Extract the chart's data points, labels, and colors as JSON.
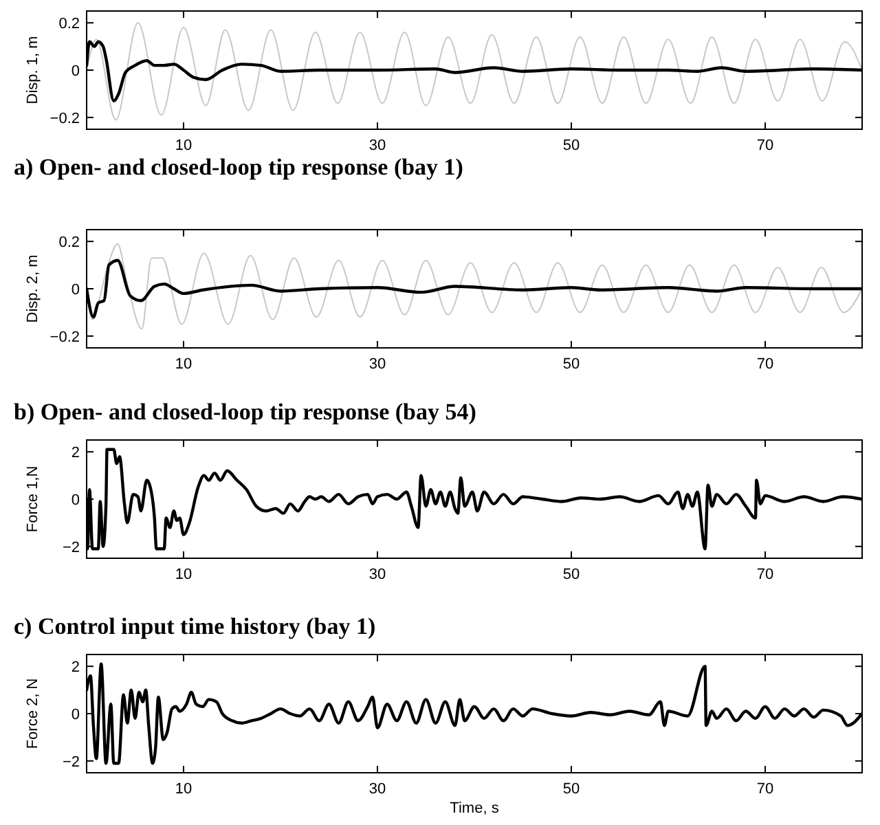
{
  "chart_data": [
    {
      "type": "line",
      "title": "a) Open- and closed-loop tip response (bay 1)",
      "ylabel": "Disp. 1, m",
      "xlim": [
        0,
        80
      ],
      "xticks": [
        10,
        30,
        50,
        70
      ],
      "ylim": [
        -0.25,
        0.25
      ],
      "yticks": [
        -0.2,
        0,
        0.2
      ],
      "series": [
        {
          "color": "#c8c8c8",
          "x": [
            0,
            1,
            3,
            5.3,
            7.7,
            10,
            12.3,
            14.3,
            16.7,
            19,
            21.3,
            23.6,
            25.9,
            28.2,
            30.5,
            32.8,
            35,
            37.3,
            39.6,
            41.8,
            44.1,
            46.4,
            48.6,
            50.9,
            53.2,
            55.4,
            57.7,
            60,
            62.3,
            64.5,
            66.8,
            69,
            71.3,
            73.6,
            75.9,
            78.2,
            80
          ],
          "values": [
            0,
            0.13,
            -0.21,
            0.2,
            -0.19,
            0.18,
            -0.15,
            0.17,
            -0.17,
            0.17,
            -0.17,
            0.16,
            -0.14,
            0.16,
            -0.14,
            0.16,
            -0.15,
            0.14,
            -0.14,
            0.15,
            -0.14,
            0.14,
            -0.14,
            0.14,
            -0.14,
            0.14,
            -0.14,
            0.13,
            -0.14,
            0.14,
            -0.14,
            0.13,
            -0.13,
            0.13,
            -0.13,
            0.12,
            0
          ]
        },
        {
          "color": "#000000",
          "x": [
            0,
            0.3,
            0.8,
            1.2,
            1.7,
            2,
            2.8,
            3.3,
            4,
            5,
            6.2,
            7,
            8,
            9,
            10,
            11,
            12.3,
            14,
            16,
            18,
            20,
            24,
            30,
            36,
            38,
            42,
            45,
            50,
            55,
            60,
            63,
            65.5,
            68,
            75,
            80
          ],
          "values": [
            0.02,
            0.12,
            0.1,
            0.12,
            0.1,
            0.05,
            -0.13,
            -0.1,
            -0.01,
            0.02,
            0.04,
            0.02,
            0.02,
            0.025,
            0,
            -0.03,
            -0.04,
            0,
            0.025,
            0.02,
            -0.005,
            0,
            0,
            0.005,
            -0.01,
            0.01,
            -0.005,
            0.005,
            0,
            0,
            -0.005,
            0.01,
            -0.005,
            0.005,
            0
          ]
        }
      ]
    },
    {
      "type": "line",
      "title": "b) Open- and closed-loop tip response (bay 54)",
      "ylabel": "Disp. 2, m",
      "xlim": [
        0,
        80
      ],
      "xticks": [
        10,
        30,
        50,
        70
      ],
      "ylim": [
        -0.25,
        0.25
      ],
      "yticks": [
        -0.2,
        0,
        0.2
      ],
      "series": [
        {
          "color": "#c8c8c8",
          "x": [
            0,
            0.6,
            1.2,
            2.2,
            3.2,
            4.2,
            5.7,
            6.7,
            7.8,
            9.8,
            12.1,
            14.6,
            16.9,
            19.2,
            21.4,
            23.7,
            26,
            28.2,
            30.5,
            32.8,
            35,
            37.3,
            39.6,
            41.8,
            44.1,
            46.4,
            48.6,
            50.9,
            53.2,
            55.4,
            57.7,
            60,
            62.2,
            64.5,
            66.8,
            69,
            71.3,
            73.6,
            75.8,
            78.1,
            80
          ],
          "values": [
            0,
            -0.13,
            -0.06,
            0.1,
            0.19,
            0.02,
            -0.17,
            0.13,
            0.13,
            -0.15,
            0.15,
            -0.15,
            0.14,
            -0.13,
            0.13,
            -0.12,
            0.12,
            -0.12,
            0.12,
            -0.11,
            0.12,
            -0.11,
            0.11,
            -0.1,
            0.11,
            -0.1,
            0.11,
            -0.1,
            0.1,
            -0.1,
            0.1,
            -0.1,
            0.1,
            -0.1,
            0.1,
            -0.1,
            0.09,
            -0.1,
            0.09,
            -0.1,
            0
          ]
        },
        {
          "color": "#000000",
          "x": [
            0,
            0.7,
            1.2,
            1.8,
            2.3,
            3.2,
            4.5,
            5.6,
            7,
            8,
            9,
            10,
            12,
            17,
            20,
            24,
            30,
            34.5,
            38,
            45,
            50,
            53,
            60,
            65,
            68,
            75,
            80
          ],
          "values": [
            0,
            -0.12,
            -0.06,
            -0.05,
            0.1,
            0.12,
            -0.03,
            -0.05,
            0.01,
            0.02,
            0,
            -0.02,
            -0.005,
            0.015,
            -0.01,
            0,
            0.005,
            -0.015,
            0.01,
            -0.005,
            0.005,
            -0.005,
            0.005,
            -0.01,
            0.005,
            0,
            0
          ]
        }
      ]
    },
    {
      "type": "line",
      "title": "c) Control input time history (bay 1)",
      "ylabel": "Force 1,N",
      "xlim": [
        0,
        80
      ],
      "xticks": [
        10,
        30,
        50,
        70
      ],
      "ylim": [
        -2.5,
        2.5
      ],
      "yticks": [
        -2,
        0,
        2
      ],
      "series": [
        {
          "color": "#000000",
          "x": [
            0,
            0.1,
            0.3,
            0.6,
            1.2,
            1.4,
            1.7,
            2,
            2.1,
            2.8,
            3.1,
            3.4,
            3.9,
            4.2,
            4.8,
            5.3,
            5.6,
            6.2,
            6.5,
            7,
            7.2,
            8,
            8.2,
            8.6,
            9,
            9.3,
            9.6,
            10,
            10.6,
            11.5,
            12.1,
            12.6,
            13.2,
            13.8,
            14.5,
            15.5,
            16.5,
            17.5,
            18.5,
            19.5,
            20.3,
            21,
            21.8,
            22.5,
            23,
            23.6,
            24.2,
            25,
            26,
            27,
            28,
            29,
            29.5,
            30,
            31,
            32,
            33,
            33.5,
            34.2,
            34.5,
            35,
            35.5,
            36,
            36.5,
            37,
            37.5,
            38,
            38.3,
            38.6,
            39,
            39.8,
            40.3,
            41,
            42,
            43,
            44,
            45,
            47,
            49,
            51,
            53,
            55,
            57,
            59,
            60,
            61,
            61.5,
            62,
            62.5,
            63,
            63.8,
            64.1,
            64.5,
            65,
            66,
            67,
            68,
            69,
            69.1,
            69.5,
            70,
            72,
            74,
            76,
            78,
            80
          ],
          "values": [
            0,
            -2.1,
            0.4,
            -2.1,
            -2.1,
            -0.1,
            -2,
            -0.2,
            2.1,
            2.1,
            1.5,
            1.8,
            -0.2,
            -1,
            0.2,
            0.1,
            -0.5,
            0.8,
            0.6,
            -0.8,
            -2.1,
            -2.1,
            -0.8,
            -1.2,
            -0.5,
            -0.9,
            -0.8,
            -1.5,
            -1,
            0.5,
            1,
            0.8,
            1.1,
            0.8,
            1.2,
            0.8,
            0.4,
            -0.3,
            -0.5,
            -0.4,
            -0.6,
            -0.2,
            -0.5,
            -0.1,
            0.1,
            0,
            0.1,
            -0.1,
            0.2,
            -0.2,
            0.1,
            0.2,
            -0.2,
            0.1,
            0.2,
            0,
            0.3,
            -0.3,
            -1.2,
            1,
            -0.3,
            0.4,
            -0.2,
            0.3,
            -0.3,
            0.3,
            -0.4,
            -0.6,
            0.9,
            -0.3,
            0.3,
            -0.5,
            0.3,
            -0.2,
            0.2,
            -0.2,
            0.1,
            0,
            -0.1,
            0.05,
            0,
            0.1,
            -0.1,
            0.15,
            -0.2,
            0.3,
            -0.4,
            0.2,
            -0.3,
            0.3,
            -2.1,
            0.6,
            -0.3,
            0.2,
            -0.2,
            0.2,
            -0.3,
            -0.8,
            0.8,
            -0.2,
            0.15,
            -0.1,
            0.1,
            -0.1,
            0.1,
            0
          ]
        }
      ]
    },
    {
      "type": "line",
      "xlabel": "Time, s",
      "ylabel": "Force 2, N",
      "xlim": [
        0,
        80
      ],
      "xticks": [
        10,
        30,
        50,
        70
      ],
      "ylim": [
        -2.5,
        2.5
      ],
      "yticks": [
        -2,
        0,
        2
      ],
      "series": [
        {
          "color": "#000000",
          "x": [
            0,
            0.4,
            0.7,
            1,
            1.5,
            2,
            2.5,
            2.8,
            3.3,
            3.8,
            4.2,
            4.6,
            5,
            5.4,
            5.8,
            6.1,
            6.4,
            6.8,
            7.1,
            7.4,
            7.9,
            8.3,
            8.8,
            9.2,
            9.6,
            10.3,
            10.8,
            11.3,
            12,
            12.6,
            13.4,
            14,
            15,
            16,
            17,
            18,
            19,
            20,
            21,
            22,
            23,
            24,
            25,
            26,
            27,
            28,
            29,
            29.5,
            30,
            31,
            32,
            33,
            34,
            35,
            36,
            37,
            38,
            38.5,
            39,
            40,
            41,
            42,
            43,
            44,
            45,
            46,
            48,
            50,
            52,
            54,
            56,
            58,
            59.2,
            59.6,
            60,
            62,
            63.8,
            63.9,
            64.5,
            65,
            66,
            67,
            68,
            69,
            70,
            71,
            72,
            73,
            74,
            75,
            76,
            77.8,
            78.5,
            80
          ],
          "values": [
            1,
            1.6,
            -0.5,
            -1.9,
            2.1,
            -2.1,
            0.4,
            -2.1,
            -2.1,
            0.8,
            -0.4,
            1,
            -0.2,
            0.9,
            0.5,
            1,
            -0.5,
            -2.1,
            -1.5,
            0.7,
            -1.1,
            -0.8,
            0.2,
            0.3,
            0.1,
            0.4,
            0.9,
            0.4,
            0.3,
            0.6,
            0.5,
            0,
            -0.3,
            -0.4,
            -0.3,
            -0.2,
            0,
            0.2,
            0,
            -0.1,
            0.2,
            -0.3,
            0.4,
            -0.4,
            0.5,
            -0.3,
            0.3,
            0.7,
            -0.6,
            0.4,
            -0.3,
            0.5,
            -0.4,
            0.6,
            -0.4,
            0.5,
            -0.5,
            0.6,
            -0.3,
            0.3,
            -0.2,
            0.2,
            -0.3,
            0.2,
            -0.1,
            0.2,
            0,
            -0.1,
            0.05,
            -0.05,
            0.1,
            -0.05,
            0.5,
            -0.5,
            0.1,
            -0.1,
            2,
            -0.5,
            0.1,
            -0.2,
            0.2,
            -0.3,
            0.1,
            -0.2,
            0.3,
            -0.2,
            0.2,
            -0.1,
            0.2,
            -0.15,
            0.15,
            -0.1,
            -0.5,
            0
          ]
        }
      ]
    }
  ]
}
